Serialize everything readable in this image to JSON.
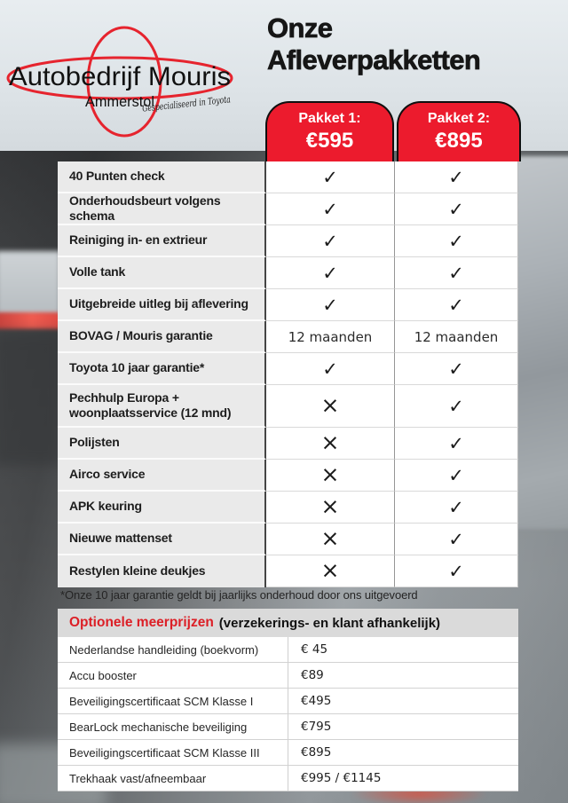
{
  "logo": {
    "company": "Autobedrijf Mouris",
    "city": "Ammerstol",
    "tagline": "Gespecialiseerd in Toyota"
  },
  "title": {
    "line1": "Onze",
    "line2": "Afleverpakketten"
  },
  "packages": [
    {
      "label": "Pakket 1:",
      "price": "€595"
    },
    {
      "label": "Pakket 2:",
      "price": "€895"
    }
  ],
  "comparison": {
    "rows": [
      {
        "feature": "40 Punten check",
        "p1": "✓",
        "p2": "✓"
      },
      {
        "feature": "Onderhoudsbeurt volgens schema",
        "p1": "✓",
        "p2": "✓"
      },
      {
        "feature": "Reiniging in- en extrieur",
        "p1": "✓",
        "p2": "✓"
      },
      {
        "feature": "Volle tank",
        "p1": "✓",
        "p2": "✓"
      },
      {
        "feature": "Uitgebreide uitleg bij aflevering",
        "p1": "✓",
        "p2": "✓"
      },
      {
        "feature": "BOVAG / Mouris garantie",
        "p1": "12 maanden",
        "p2": "12 maanden"
      },
      {
        "feature": "Toyota 10 jaar garantie*",
        "p1": "✓",
        "p2": "✓"
      },
      {
        "feature": "Pechhulp Europa + woonplaatsservice (12 mnd)",
        "p1": "×",
        "p2": "✓"
      },
      {
        "feature": "Polijsten",
        "p1": "×",
        "p2": "✓"
      },
      {
        "feature": "Airco service",
        "p1": "×",
        "p2": "✓"
      },
      {
        "feature": "APK keuring",
        "p1": "×",
        "p2": "✓"
      },
      {
        "feature": "Nieuwe mattenset",
        "p1": "×",
        "p2": "✓"
      },
      {
        "feature": "Restylen kleine deukjes",
        "p1": "×",
        "p2": "✓"
      }
    ]
  },
  "footnote": "*Onze 10 jaar garantie geldt bij jaarlijks onderhoud door ons uitgevoerd",
  "options": {
    "heading_red": "Optionele meerprijzen",
    "heading_black": "(verzekerings- en klant afhankelijk)",
    "rows": [
      {
        "label": "Nederlandse handleiding (boekvorm)",
        "price": "€ 45"
      },
      {
        "label": "Accu booster",
        "price": "€89"
      },
      {
        "label": "Beveiligingscertificaat SCM Klasse I",
        "price": "€495"
      },
      {
        "label": "BearLock mechanische beveiliging",
        "price": "€795"
      },
      {
        "label": "Beveiligingscertificaat SCM Klasse III",
        "price": "€895"
      },
      {
        "label": "Trekhaak vast/afneembaar",
        "price": "€995 / €1145"
      }
    ]
  },
  "colors": {
    "package_header_red": "#ec1b2d",
    "logo_red": "#e6242e",
    "options_heading_red": "#dc1f26",
    "feature_cell_gray": "#eaeaea",
    "options_band_gray": "#dadada"
  }
}
